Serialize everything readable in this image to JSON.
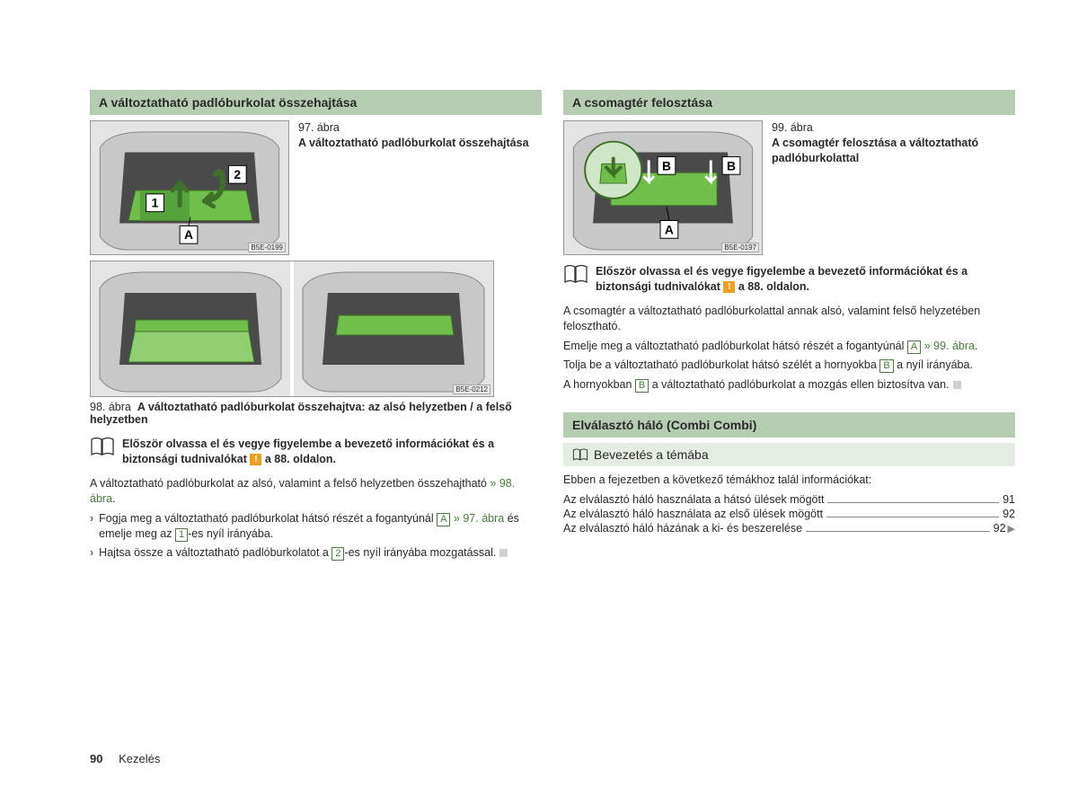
{
  "left": {
    "header1": "A változtatható padlóburkolat összehajtása",
    "fig97": {
      "num": "97. ábra",
      "title": "A változtatható padlóburkolat összehajtása",
      "id": "B5E-0199"
    },
    "fig98": {
      "num": "98. ábra",
      "title": "A változtatható padlóburkolat összehajtva: az alsó helyzetben / a felső helyzetben",
      "id": "B5E-0212"
    },
    "notice_pre": "Először olvassa el és vegye figyelembe a bevezető információkat és a biztonsági tudnivalókat ",
    "notice_post": " a 88. oldalon.",
    "body1_a": "A változtatható padlóburkolat az alsó, valamint a felső helyzetben összehajtható ",
    "body1_link": "» 98. ábra",
    "bullet1_a": "Fogja meg a változtatható padlóburkolat hátsó részét a fogantyúnál ",
    "bullet1_ref": "A",
    "bullet1_link": " » 97. ábra",
    "bullet1_b": " és emelje meg az ",
    "bullet1_ref2": "1",
    "bullet1_c": "-es nyíl irányába.",
    "bullet2_a": "Hajtsa össze a változtatható padlóburkolatot a ",
    "bullet2_ref": "2",
    "bullet2_b": "-es nyíl irányába mozgatással."
  },
  "right": {
    "header1": "A csomagtér felosztása",
    "fig99": {
      "num": "99. ábra",
      "title": "A csomagtér felosztása a változtatható padlóburkolattal",
      "id": "B5E-0197"
    },
    "notice_pre": "Először olvassa el és vegye figyelembe a bevezető információkat és a biztonsági tudnivalókat ",
    "notice_post": " a 88. oldalon.",
    "body1": "A csomagtér a változtatható padlóburkolattal annak alsó, valamint felső helyzetében felosztható.",
    "body2_a": "Emelje meg a változtatható padlóburkolat hátsó részét a fogantyúnál ",
    "body2_ref": "A",
    "body2_link": " » 99. ábra",
    "body3_a": "Tolja be a változtatható padlóburkolat hátsó szélét a hornyokba ",
    "body3_ref": "B",
    "body3_b": " a nyíl irányába.",
    "body4_a": "A hornyokban ",
    "body4_ref": "B",
    "body4_b": " a változtatható padlóburkolat a mozgás ellen biztosítva van.",
    "header2": "Elválasztó háló (Combi Combi)",
    "subheader": "Bevezetés a témába",
    "toc_intro": "Ebben a fejezetben a következő témákhoz talál információkat:",
    "toc": [
      {
        "label": "Az elválasztó háló használata a hátsó ülések mögött",
        "pg": "91"
      },
      {
        "label": "Az elválasztó háló használata az első ülések mögött",
        "pg": "92"
      },
      {
        "label": "Az elválasztó háló házának a ki- és beszerelése",
        "pg": "92",
        "cont": true
      }
    ]
  },
  "footer": {
    "page": "90",
    "section": "Kezelés"
  },
  "colors": {
    "header_bg": "#b7cdb3",
    "sub_bg": "#e5ece3",
    "green": "#4a7c3c",
    "highlight": "#6fbf4a"
  }
}
